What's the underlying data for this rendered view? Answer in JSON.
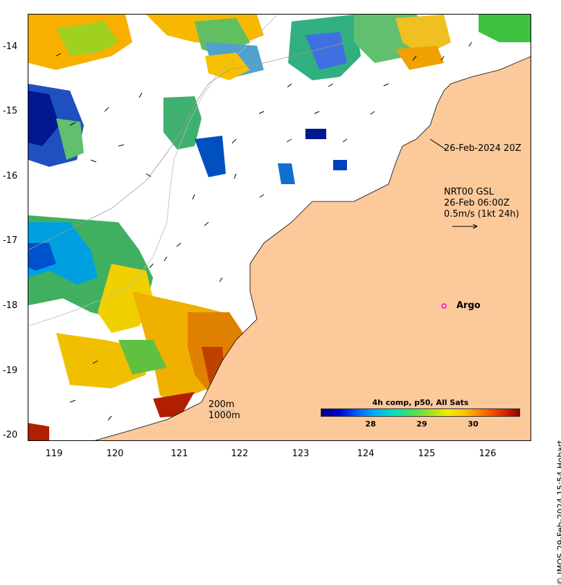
{
  "map": {
    "y_axis_labels": [
      "-14",
      "-15",
      "-16",
      "-17",
      "-18",
      "-19",
      "-20"
    ],
    "x_axis_labels": [
      "119",
      "120",
      "121",
      "122",
      "123",
      "124",
      "125",
      "126"
    ],
    "timestamp_label": "26-Feb-2024 20Z",
    "current_model": "NRT00 GSL",
    "current_time": "26-Feb 06:00Z",
    "current_scale": "0.5m/s (1kt 24h)",
    "argo_label": "Argo",
    "bathy_200": "200m",
    "bathy_1000": "1000m",
    "copyright": "© IMOS 29-Feb-2024 15:54 Hobart",
    "colors": {
      "land": "#fcc99a",
      "argo": "#ee00ee",
      "frame": "#000000"
    }
  },
  "colorbar": {
    "title": "4h comp, p50, All Sats",
    "ticks": [
      "28",
      "29",
      "30"
    ]
  }
}
